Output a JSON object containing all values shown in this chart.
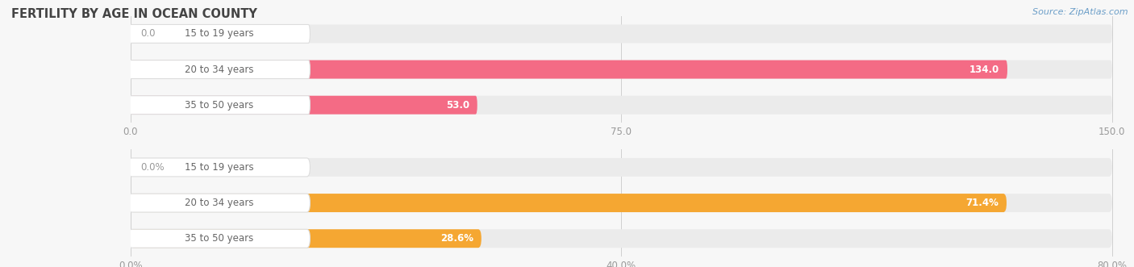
{
  "title": "FERTILITY BY AGE IN OCEAN COUNTY",
  "source": "Source: ZipAtlas.com",
  "top_chart": {
    "categories": [
      "15 to 19 years",
      "20 to 34 years",
      "35 to 50 years"
    ],
    "values": [
      0.0,
      134.0,
      53.0
    ],
    "x_ticks": [
      0.0,
      75.0,
      150.0
    ],
    "x_tick_labels": [
      "0.0",
      "75.0",
      "150.0"
    ],
    "x_max": 150.0,
    "bar_color": "#F46B85",
    "bar_bg_color": "#EBEBEB"
  },
  "bottom_chart": {
    "categories": [
      "15 to 19 years",
      "20 to 34 years",
      "35 to 50 years"
    ],
    "values": [
      0.0,
      71.4,
      28.6
    ],
    "x_ticks": [
      0.0,
      40.0,
      80.0
    ],
    "x_tick_labels": [
      "0.0%",
      "40.0%",
      "80.0%"
    ],
    "x_max": 80.0,
    "bar_color": "#F5A732",
    "bar_bg_color": "#EBEBEB",
    "is_pct": true
  },
  "fig_bg": "#F7F7F7",
  "label_bg": "#FFFFFF",
  "label_text_color": "#666666",
  "title_color": "#444444",
  "tick_color": "#999999",
  "source_color": "#6B9EC8",
  "bar_height": 0.52,
  "label_fontsize": 8.5,
  "value_fontsize": 8.5,
  "title_fontsize": 10.5,
  "source_fontsize": 8.0,
  "tick_fontsize": 8.5
}
